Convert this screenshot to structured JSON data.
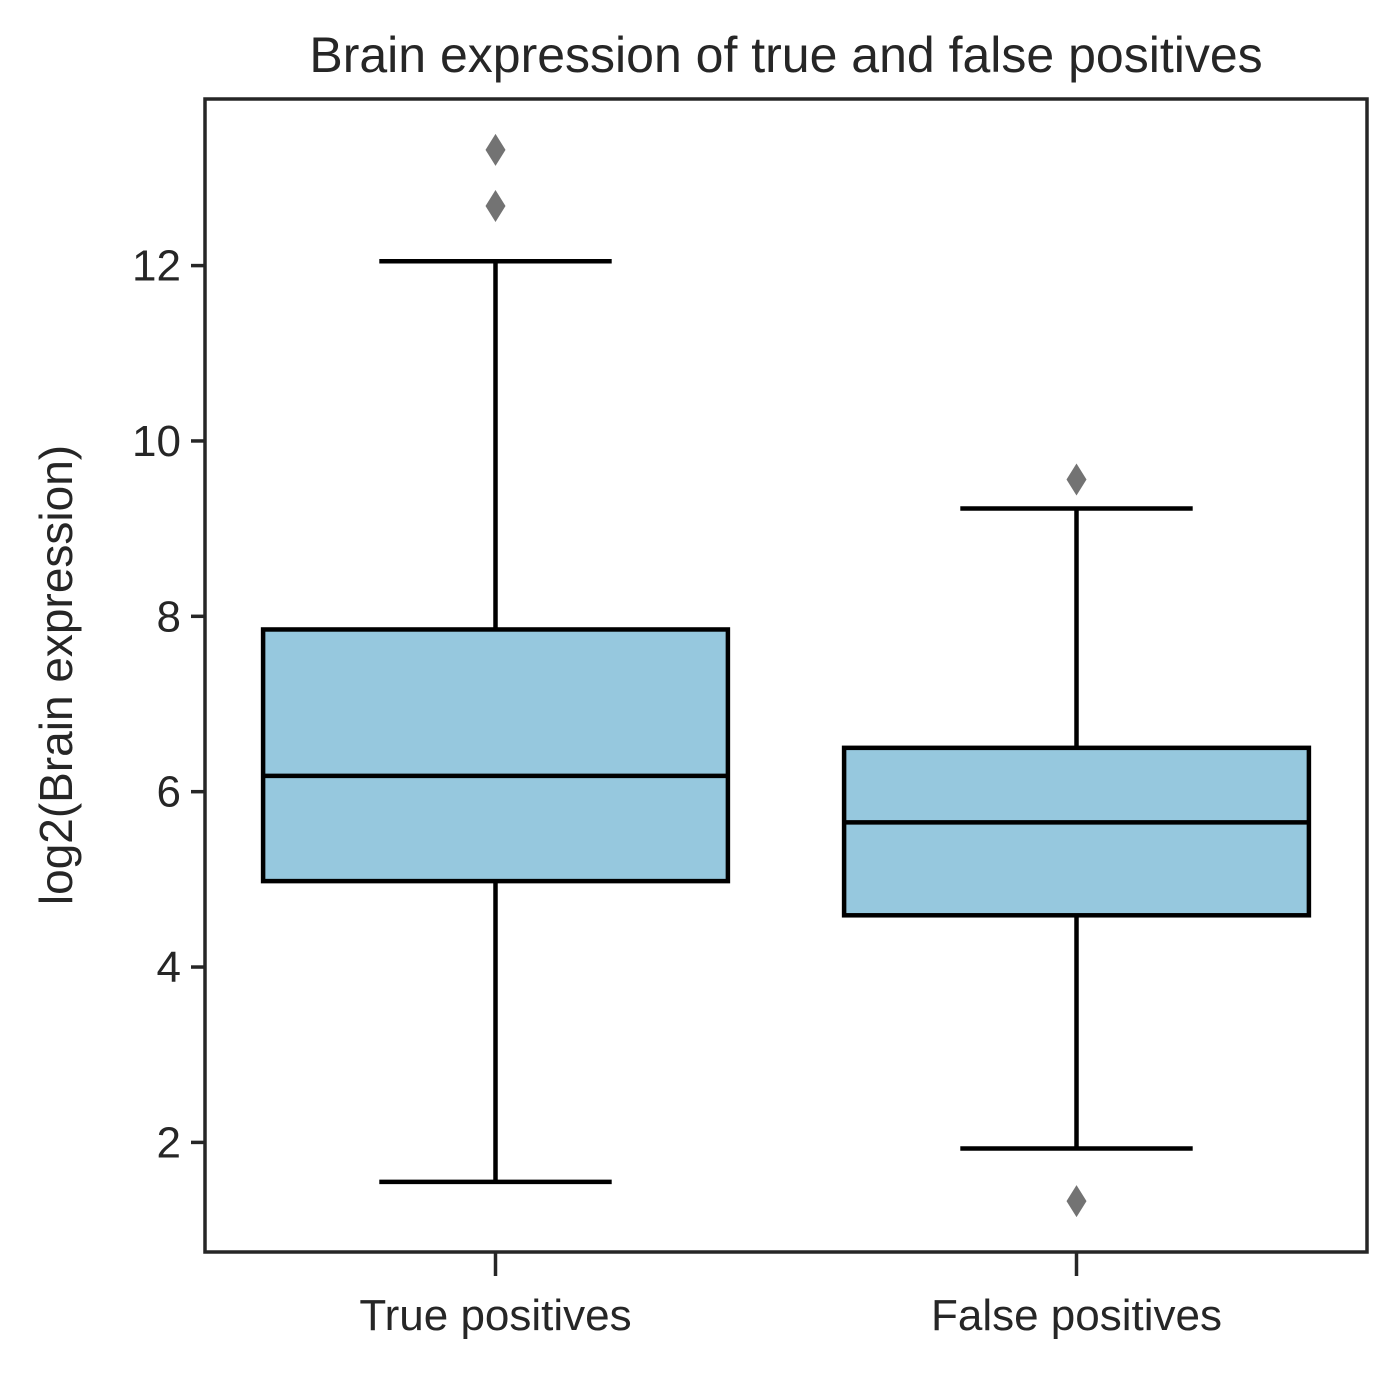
{
  "chart_data": {
    "type": "box",
    "title": "Brain expression of true and false positives",
    "xlabel": "",
    "ylabel": "log2(Brain expression)",
    "ylim": [
      0.75,
      13.9
    ],
    "yticks": [
      2,
      4,
      6,
      8,
      10,
      12
    ],
    "grid": false,
    "legend": "none",
    "box_color": "#96c8de",
    "line_color": "#000000",
    "outlier_color": "#737373",
    "categories": [
      "True positives",
      "False positives"
    ],
    "boxes": [
      {
        "category": "True positives",
        "whisker_low": 1.55,
        "q1": 4.98,
        "median": 6.18,
        "q3": 7.85,
        "whisker_high": 12.05,
        "outliers": [
          12.68,
          13.32
        ]
      },
      {
        "category": "False positives",
        "whisker_low": 1.93,
        "q1": 4.59,
        "median": 5.65,
        "q3": 6.5,
        "whisker_high": 9.23,
        "outliers": [
          1.33,
          9.56
        ]
      }
    ]
  }
}
